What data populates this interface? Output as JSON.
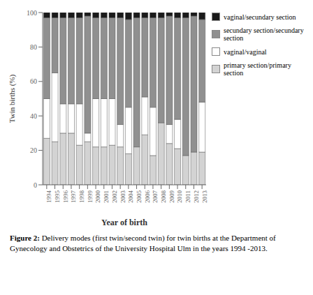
{
  "chart_data": {
    "type": "bar",
    "stacked": true,
    "grid": false,
    "legend": "right",
    "xlabel": "Year of birth",
    "ylabel": "Twin births (%)",
    "categories": [
      "1994",
      "1995",
      "1996",
      "1997",
      "1998",
      "1999",
      "2000",
      "2001",
      "2002",
      "2003",
      "2004",
      "2005",
      "2006",
      "2007",
      "2008",
      "2009",
      "2010",
      "2011",
      "2012",
      "2013"
    ],
    "series": [
      {
        "name": "primary section/primary section",
        "color": "#d3d3d3",
        "values": [
          27,
          25,
          30,
          30,
          23,
          25,
          22,
          22,
          23,
          22,
          18,
          22,
          29,
          17,
          36,
          24,
          21,
          17,
          19,
          19
        ]
      },
      {
        "name": "vaginal/vaginal",
        "color": "#ffffff",
        "values": [
          23,
          40,
          17,
          17,
          24,
          5,
          28,
          28,
          27,
          13,
          27,
          0,
          22,
          28,
          0,
          11,
          17,
          0,
          0,
          29
        ]
      },
      {
        "name": "secundary section/secundary section",
        "color": "#909090",
        "values": [
          47,
          32,
          50,
          50,
          50,
          68,
          47,
          47,
          47,
          62,
          51,
          75,
          46,
          52,
          61,
          63,
          59,
          80,
          79,
          48
        ]
      },
      {
        "name": "vaginal/secundary section",
        "color": "#1a1a1a",
        "values": [
          3,
          3,
          3,
          3,
          3,
          2,
          3,
          3,
          3,
          3,
          4,
          3,
          3,
          3,
          3,
          2,
          3,
          3,
          2,
          4
        ]
      }
    ],
    "ylim": [
      0,
      100
    ],
    "yticks": [
      0,
      20,
      40,
      60,
      80,
      100
    ],
    "annotations": [
      "Figure 2:",
      "Delivery modes (first twin/second twin) for twin births at the Department of Gynecology and Obstetrics of the University Hospital Ulm in the years 1994 -2013."
    ]
  }
}
